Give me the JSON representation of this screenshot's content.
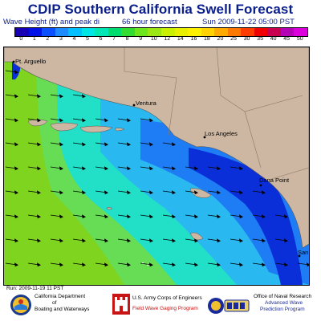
{
  "title": "CDIP Southern California Swell Forecast",
  "header": {
    "quantity_label": "Wave Height (ft) and peak di",
    "forecast_label": "66 hour forecast",
    "valid_time": "Sun 2009-11-22 05:00 PST"
  },
  "legend": {
    "labels": [
      "0",
      "1",
      "2",
      "3",
      "4",
      "5",
      "6",
      "7",
      "8",
      "9",
      "10",
      "12",
      "14",
      "16",
      "18",
      "20",
      "25",
      "30",
      "35",
      "40",
      "45",
      "50"
    ],
    "colors": [
      "#1a00b4",
      "#0010e6",
      "#0a50ff",
      "#1e8cff",
      "#00c0ff",
      "#00e6e6",
      "#00e6b4",
      "#00dc6e",
      "#32dc32",
      "#6ee61e",
      "#9be614",
      "#c8f000",
      "#e6f000",
      "#fff000",
      "#ffd200",
      "#ffaa00",
      "#ff7800",
      "#ff3c00",
      "#f00000",
      "#c80050",
      "#b400b4",
      "#dc00dc"
    ]
  },
  "places": {
    "pt_arguello": "Pt. Arguello",
    "ventura": "Ventura",
    "los_angeles": "Los Angeles",
    "dana_point": "Dana Point",
    "san_diego": "San D"
  },
  "run_time": "Run: 2009-11-19 11 PST",
  "footer": {
    "calif_line1": "California Department",
    "calif_line2": "of",
    "calif_line3": "Boating and Waterways",
    "army_line1": "U.S. Army Corps of Engineers",
    "army_line2": "Field Wave Gaging Program",
    "navy_line1": "Office of Naval Research",
    "navy_line2": "Advanced Wave",
    "navy_line3": "Prediction Program"
  }
}
